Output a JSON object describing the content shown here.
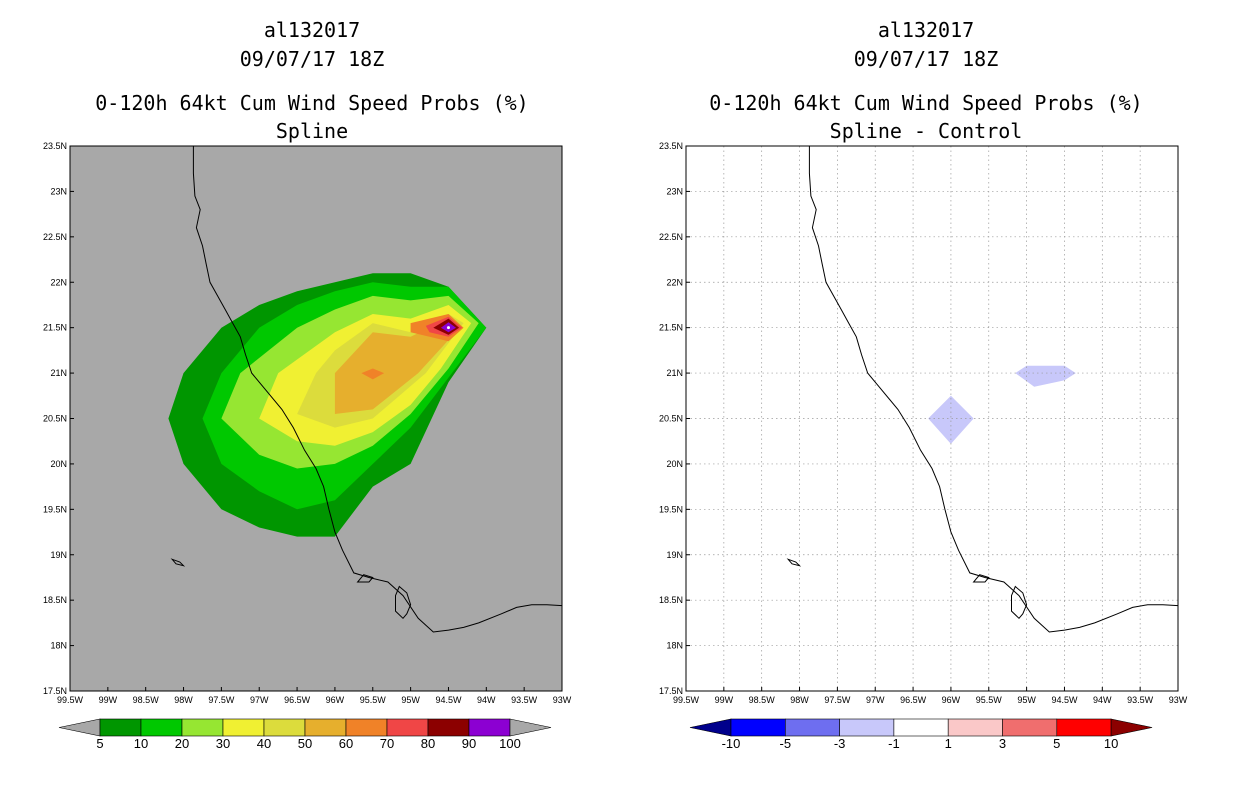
{
  "chart_data": [
    {
      "type": "filled-contour-map",
      "storm_id": "al132017",
      "datetime": "09/07/17 18Z",
      "title": "0-120h 64kt Cum Wind Speed Probs (%)",
      "subtitle": "Spline",
      "background": "#a8a8a8",
      "xlim": [
        -99.5,
        -93
      ],
      "ylim": [
        17.5,
        23.5
      ],
      "x_ticks": [
        "99.5W",
        "99W",
        "98.5W",
        "98W",
        "97.5W",
        "97W",
        "96.5W",
        "96W",
        "95.5W",
        "95W",
        "94.5W",
        "94W",
        "93.5W",
        "93W"
      ],
      "y_ticks": [
        "17.5N",
        "18N",
        "18.5N",
        "19N",
        "19.5N",
        "20N",
        "20.5N",
        "21N",
        "21.5N",
        "22N",
        "22.5N",
        "23N",
        "23.5N"
      ],
      "colorbar": {
        "levels": [
          "5",
          "10",
          "20",
          "30",
          "40",
          "50",
          "60",
          "70",
          "80",
          "90",
          "100"
        ],
        "colors": [
          "#009600",
          "#00c800",
          "#96e632",
          "#f0f032",
          "#dcdc3c",
          "#e6af2d",
          "#f08228",
          "#f04646",
          "#8c0000",
          "#8c00d2"
        ],
        "low_color": "#a8a8a8",
        "high_color": "#a8a8a8"
      },
      "contours": [
        {
          "level": 5,
          "color": "#009600",
          "polygon": [
            [
              -95.5,
              22.1
            ],
            [
              -95,
              22.1
            ],
            [
              -94.5,
              21.95
            ],
            [
              -94,
              21.5
            ],
            [
              -94.5,
              20.9
            ],
            [
              -95,
              20
            ],
            [
              -95.5,
              19.75
            ],
            [
              -96,
              19.2
            ],
            [
              -96.5,
              19.2
            ],
            [
              -97,
              19.3
            ],
            [
              -97.5,
              19.5
            ],
            [
              -98,
              20
            ],
            [
              -98.2,
              20.5
            ],
            [
              -98,
              21
            ],
            [
              -97.5,
              21.5
            ],
            [
              -97,
              21.75
            ],
            [
              -96.5,
              21.9
            ],
            [
              -96,
              22
            ]
          ]
        },
        {
          "level": 10,
          "color": "#00c800",
          "polygon": [
            [
              -95.5,
              22
            ],
            [
              -95,
              21.95
            ],
            [
              -94.5,
              21.95
            ],
            [
              -94,
              21.5
            ],
            [
              -94.5,
              20.95
            ],
            [
              -95,
              20.4
            ],
            [
              -95.5,
              20
            ],
            [
              -96,
              19.6
            ],
            [
              -96.5,
              19.5
            ],
            [
              -97,
              19.7
            ],
            [
              -97.5,
              20
            ],
            [
              -97.75,
              20.5
            ],
            [
              -97.5,
              21
            ],
            [
              -97,
              21.5
            ],
            [
              -96.5,
              21.75
            ],
            [
              -96,
              21.9
            ]
          ]
        },
        {
          "level": 20,
          "color": "#96e632",
          "polygon": [
            [
              -95.5,
              21.85
            ],
            [
              -95,
              21.8
            ],
            [
              -94.5,
              21.85
            ],
            [
              -94.1,
              21.55
            ],
            [
              -94.5,
              21.05
            ],
            [
              -95,
              20.55
            ],
            [
              -95.5,
              20.2
            ],
            [
              -96,
              20
            ],
            [
              -96.5,
              19.95
            ],
            [
              -97,
              20.1
            ],
            [
              -97.5,
              20.5
            ],
            [
              -97.25,
              21
            ],
            [
              -96.5,
              21.5
            ],
            [
              -96,
              21.7
            ]
          ]
        },
        {
          "level": 30,
          "color": "#f0f032",
          "polygon": [
            [
              -95.5,
              21.65
            ],
            [
              -95,
              21.6
            ],
            [
              -94.5,
              21.75
            ],
            [
              -94.2,
              21.55
            ],
            [
              -94.6,
              21.05
            ],
            [
              -95,
              20.65
            ],
            [
              -95.5,
              20.35
            ],
            [
              -96,
              20.2
            ],
            [
              -96.5,
              20.25
            ],
            [
              -97,
              20.5
            ],
            [
              -96.75,
              21
            ],
            [
              -96,
              21.45
            ]
          ]
        },
        {
          "level": 40,
          "color": "#dcdc3c",
          "polygon": [
            [
              -95.5,
              21.55
            ],
            [
              -95,
              21.45
            ],
            [
              -94.5,
              21.65
            ],
            [
              -94.3,
              21.55
            ],
            [
              -94.8,
              21
            ],
            [
              -95.5,
              20.5
            ],
            [
              -96,
              20.4
            ],
            [
              -96.5,
              20.55
            ],
            [
              -96.25,
              21
            ],
            [
              -96,
              21.25
            ]
          ]
        },
        {
          "level": 50,
          "color": "#e6af2d",
          "polygon": [
            [
              -95.5,
              21.45
            ],
            [
              -95,
              21.4
            ],
            [
              -94.5,
              21.6
            ],
            [
              -94.35,
              21.5
            ],
            [
              -94.9,
              21
            ],
            [
              -95.5,
              20.6
            ],
            [
              -96,
              20.55
            ],
            [
              -96,
              21
            ]
          ]
        },
        {
          "level": 60,
          "color": "#f08228",
          "polygon": [
            [
              -95,
              21.55
            ],
            [
              -94.5,
              21.65
            ],
            [
              -94.3,
              21.5
            ],
            [
              -94.5,
              21.35
            ],
            [
              -95,
              21.45
            ]
          ]
        },
        {
          "level": 60,
          "color": "#f08228",
          "polygon": [
            [
              -95.5,
              21.05
            ],
            [
              -95.35,
              21
            ],
            [
              -95.5,
              20.93
            ],
            [
              -95.65,
              21
            ]
          ]
        },
        {
          "level": 70,
          "color": "#f04646",
          "polygon": [
            [
              -94.8,
              21.52
            ],
            [
              -94.5,
              21.62
            ],
            [
              -94.32,
              21.5
            ],
            [
              -94.5,
              21.4
            ],
            [
              -94.75,
              21.45
            ]
          ]
        },
        {
          "level": 80,
          "color": "#8c0000",
          "polygon": [
            [
              -94.7,
              21.5
            ],
            [
              -94.5,
              21.6
            ],
            [
              -94.36,
              21.5
            ],
            [
              -94.5,
              21.42
            ]
          ]
        },
        {
          "level": 90,
          "color": "#8c00d2",
          "polygon": [
            [
              -94.6,
              21.5
            ],
            [
              -94.5,
              21.56
            ],
            [
              -94.4,
              21.5
            ],
            [
              -94.5,
              21.45
            ]
          ]
        }
      ],
      "points": [
        [
          -94.5,
          21.5
        ]
      ]
    },
    {
      "type": "filled-contour-map",
      "storm_id": "al132017",
      "datetime": "09/07/17 18Z",
      "title": "0-120h 64kt Cum Wind Speed Probs (%)",
      "subtitle": "Spline - Control",
      "background": "#ffffff",
      "grid": true,
      "xlim": [
        -99.5,
        -93
      ],
      "ylim": [
        17.5,
        23.5
      ],
      "x_ticks": [
        "99.5W",
        "99W",
        "98.5W",
        "98W",
        "97.5W",
        "97W",
        "96.5W",
        "96W",
        "95.5W",
        "95W",
        "94.5W",
        "94W",
        "93.5W",
        "93W"
      ],
      "y_ticks": [
        "17.5N",
        "18N",
        "18.5N",
        "19N",
        "19.5N",
        "20N",
        "20.5N",
        "21N",
        "21.5N",
        "22N",
        "22.5N",
        "23N",
        "23.5N"
      ],
      "colorbar": {
        "levels": [
          "-10",
          "-5",
          "-3",
          "-1",
          "1",
          "3",
          "5",
          "10"
        ],
        "colors": [
          "#0000ff",
          "#6e6ef0",
          "#c8c8fa",
          "#ffffff",
          "#fac8c8",
          "#f06e6e",
          "#ff0000"
        ],
        "low_color": "#00008c",
        "high_color": "#8c0000"
      },
      "contours": [
        {
          "level": -3,
          "color": "#c8c8fa",
          "polygon": [
            [
              -96,
              20.75
            ],
            [
              -95.7,
              20.5
            ],
            [
              -96,
              20.22
            ],
            [
              -96.3,
              20.5
            ]
          ]
        },
        {
          "level": -3,
          "color": "#c8c8fa",
          "polygon": [
            [
              -95,
              21.08
            ],
            [
              -94.5,
              21.08
            ],
            [
              -94.35,
              21
            ],
            [
              -94.5,
              20.92
            ],
            [
              -94.9,
              20.85
            ],
            [
              -95.15,
              21
            ]
          ]
        }
      ],
      "points": []
    }
  ],
  "coastline": [
    [
      -97.87,
      23.5
    ],
    [
      -97.87,
      23.2
    ],
    [
      -97.85,
      22.95
    ],
    [
      -97.78,
      22.8
    ],
    [
      -97.83,
      22.6
    ],
    [
      -97.75,
      22.4
    ],
    [
      -97.7,
      22.2
    ],
    [
      -97.65,
      22
    ],
    [
      -97.55,
      21.85
    ],
    [
      -97.45,
      21.7
    ],
    [
      -97.35,
      21.55
    ],
    [
      -97.25,
      21.4
    ],
    [
      -97.18,
      21.2
    ],
    [
      -97.1,
      21
    ],
    [
      -96.95,
      20.85
    ],
    [
      -96.7,
      20.6
    ],
    [
      -96.55,
      20.4
    ],
    [
      -96.4,
      20.15
    ],
    [
      -96.25,
      19.95
    ],
    [
      -96.15,
      19.75
    ],
    [
      -96.08,
      19.5
    ],
    [
      -96,
      19.25
    ],
    [
      -95.9,
      19.05
    ],
    [
      -95.75,
      18.8
    ],
    [
      -95.55,
      18.75
    ],
    [
      -95.3,
      18.7
    ],
    [
      -95.1,
      18.55
    ],
    [
      -94.9,
      18.3
    ],
    [
      -94.7,
      18.15
    ],
    [
      -94.5,
      18.17
    ],
    [
      -94.3,
      18.2
    ],
    [
      -94.1,
      18.25
    ],
    [
      -93.8,
      18.35
    ],
    [
      -93.6,
      18.42
    ],
    [
      -93.4,
      18.45
    ],
    [
      -93.2,
      18.45
    ],
    [
      -93,
      18.44
    ]
  ],
  "islands": [
    [
      [
        -98.15,
        18.95
      ],
      [
        -98.05,
        18.92
      ],
      [
        -98,
        18.88
      ],
      [
        -98.1,
        18.9
      ]
    ],
    [
      [
        -95.15,
        18.65
      ],
      [
        -95.05,
        18.58
      ],
      [
        -95,
        18.45
      ],
      [
        -95.05,
        18.35
      ],
      [
        -95.1,
        18.3
      ],
      [
        -95.2,
        18.38
      ],
      [
        -95.2,
        18.55
      ]
    ],
    [
      [
        -95.7,
        18.7
      ],
      [
        -95.55,
        18.7
      ],
      [
        -95.5,
        18.75
      ],
      [
        -95.62,
        18.78
      ]
    ]
  ]
}
